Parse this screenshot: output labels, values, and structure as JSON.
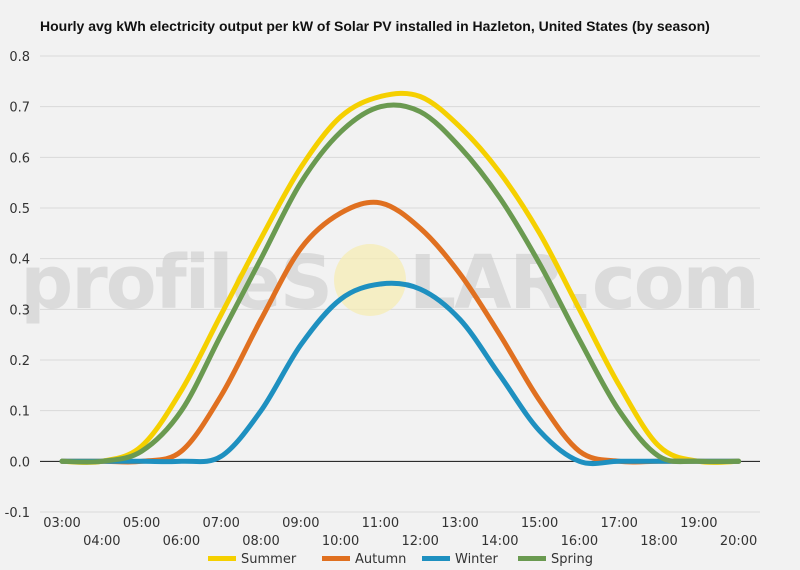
{
  "chart_data": {
    "type": "line",
    "title": "Hourly avg kWh electricity output per kW of Solar PV installed in Hazleton, United States (by season)",
    "xlabel": "",
    "ylabel": "",
    "ylim": [
      -0.1,
      0.8
    ],
    "yticks": [
      "0.8",
      "0.7",
      "0.6",
      "0.5",
      "0.4",
      "0.3",
      "0.2",
      "0.1",
      "0.0",
      "-0.1"
    ],
    "y_tick_values": [
      0.8,
      0.7,
      0.6,
      0.5,
      0.4,
      0.3,
      0.2,
      0.1,
      0.0,
      -0.1
    ],
    "x": [
      "03:00",
      "04:00",
      "05:00",
      "06:00",
      "07:00",
      "08:00",
      "09:00",
      "10:00",
      "11:00",
      "12:00",
      "13:00",
      "14:00",
      "15:00",
      "16:00",
      "17:00",
      "18:00",
      "19:00",
      "20:00"
    ],
    "grid": true,
    "legend_position": "bottom",
    "series": [
      {
        "name": "Summer",
        "color": "#f5d000",
        "values": [
          0.0,
          0.0,
          0.03,
          0.14,
          0.29,
          0.44,
          0.58,
          0.68,
          0.72,
          0.72,
          0.66,
          0.57,
          0.45,
          0.3,
          0.15,
          0.03,
          0.0,
          0.0
        ]
      },
      {
        "name": "Autumn",
        "color": "#e07020",
        "values": [
          0.0,
          0.0,
          0.0,
          0.02,
          0.13,
          0.28,
          0.42,
          0.49,
          0.51,
          0.46,
          0.37,
          0.25,
          0.12,
          0.02,
          0.0,
          0.0,
          0.0,
          0.0
        ]
      },
      {
        "name": "Winter",
        "color": "#1e90c0",
        "values": [
          0.0,
          0.0,
          0.0,
          0.0,
          0.01,
          0.1,
          0.23,
          0.32,
          0.35,
          0.34,
          0.28,
          0.17,
          0.06,
          0.0,
          0.0,
          0.0,
          0.0,
          0.0
        ]
      },
      {
        "name": "Spring",
        "color": "#6a9a50",
        "values": [
          0.0,
          0.0,
          0.02,
          0.1,
          0.25,
          0.4,
          0.55,
          0.65,
          0.7,
          0.69,
          0.62,
          0.52,
          0.39,
          0.24,
          0.1,
          0.01,
          0.0,
          0.0
        ]
      }
    ]
  },
  "watermark": {
    "left": "profileS",
    "right": "LAR.com"
  }
}
